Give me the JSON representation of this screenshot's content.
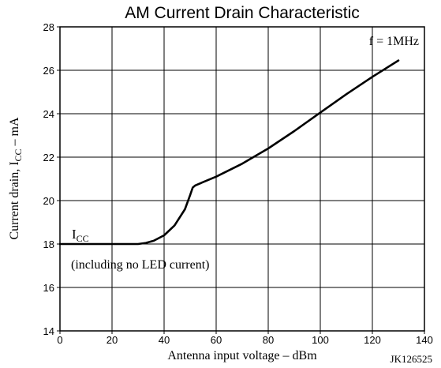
{
  "chart_data": {
    "type": "line",
    "title": "AM Current Drain Characteristic",
    "xlabel": "Antenna input voltage – dBm",
    "ylabel_main": "Current drain, I",
    "ylabel_sub": "CC",
    "ylabel_tail": " – mA",
    "xlim": [
      0,
      140
    ],
    "ylim": [
      14,
      28
    ],
    "xticks": [
      0,
      20,
      40,
      60,
      80,
      100,
      120,
      140
    ],
    "yticks": [
      14,
      16,
      18,
      20,
      22,
      24,
      26,
      28
    ],
    "grid": true,
    "series": [
      {
        "x": [
          0,
          20,
          30,
          33,
          36,
          40,
          44,
          48,
          50,
          51,
          52,
          55,
          60,
          70,
          80,
          90,
          100,
          110,
          120,
          130
        ],
        "y": [
          18.0,
          18.0,
          18.0,
          18.05,
          18.15,
          18.4,
          18.85,
          19.6,
          20.25,
          20.6,
          20.7,
          20.85,
          21.1,
          21.7,
          22.4,
          23.2,
          24.05,
          24.9,
          25.7,
          26.45
        ]
      }
    ],
    "annotations": {
      "freq": "f = 1MHz",
      "icc_main": "I",
      "icc_sub": "CC",
      "note": "(including no LED current)",
      "code": "JK126525"
    },
    "colors": {
      "line": "#000000",
      "grid": "#000000",
      "background": "#ffffff"
    }
  }
}
